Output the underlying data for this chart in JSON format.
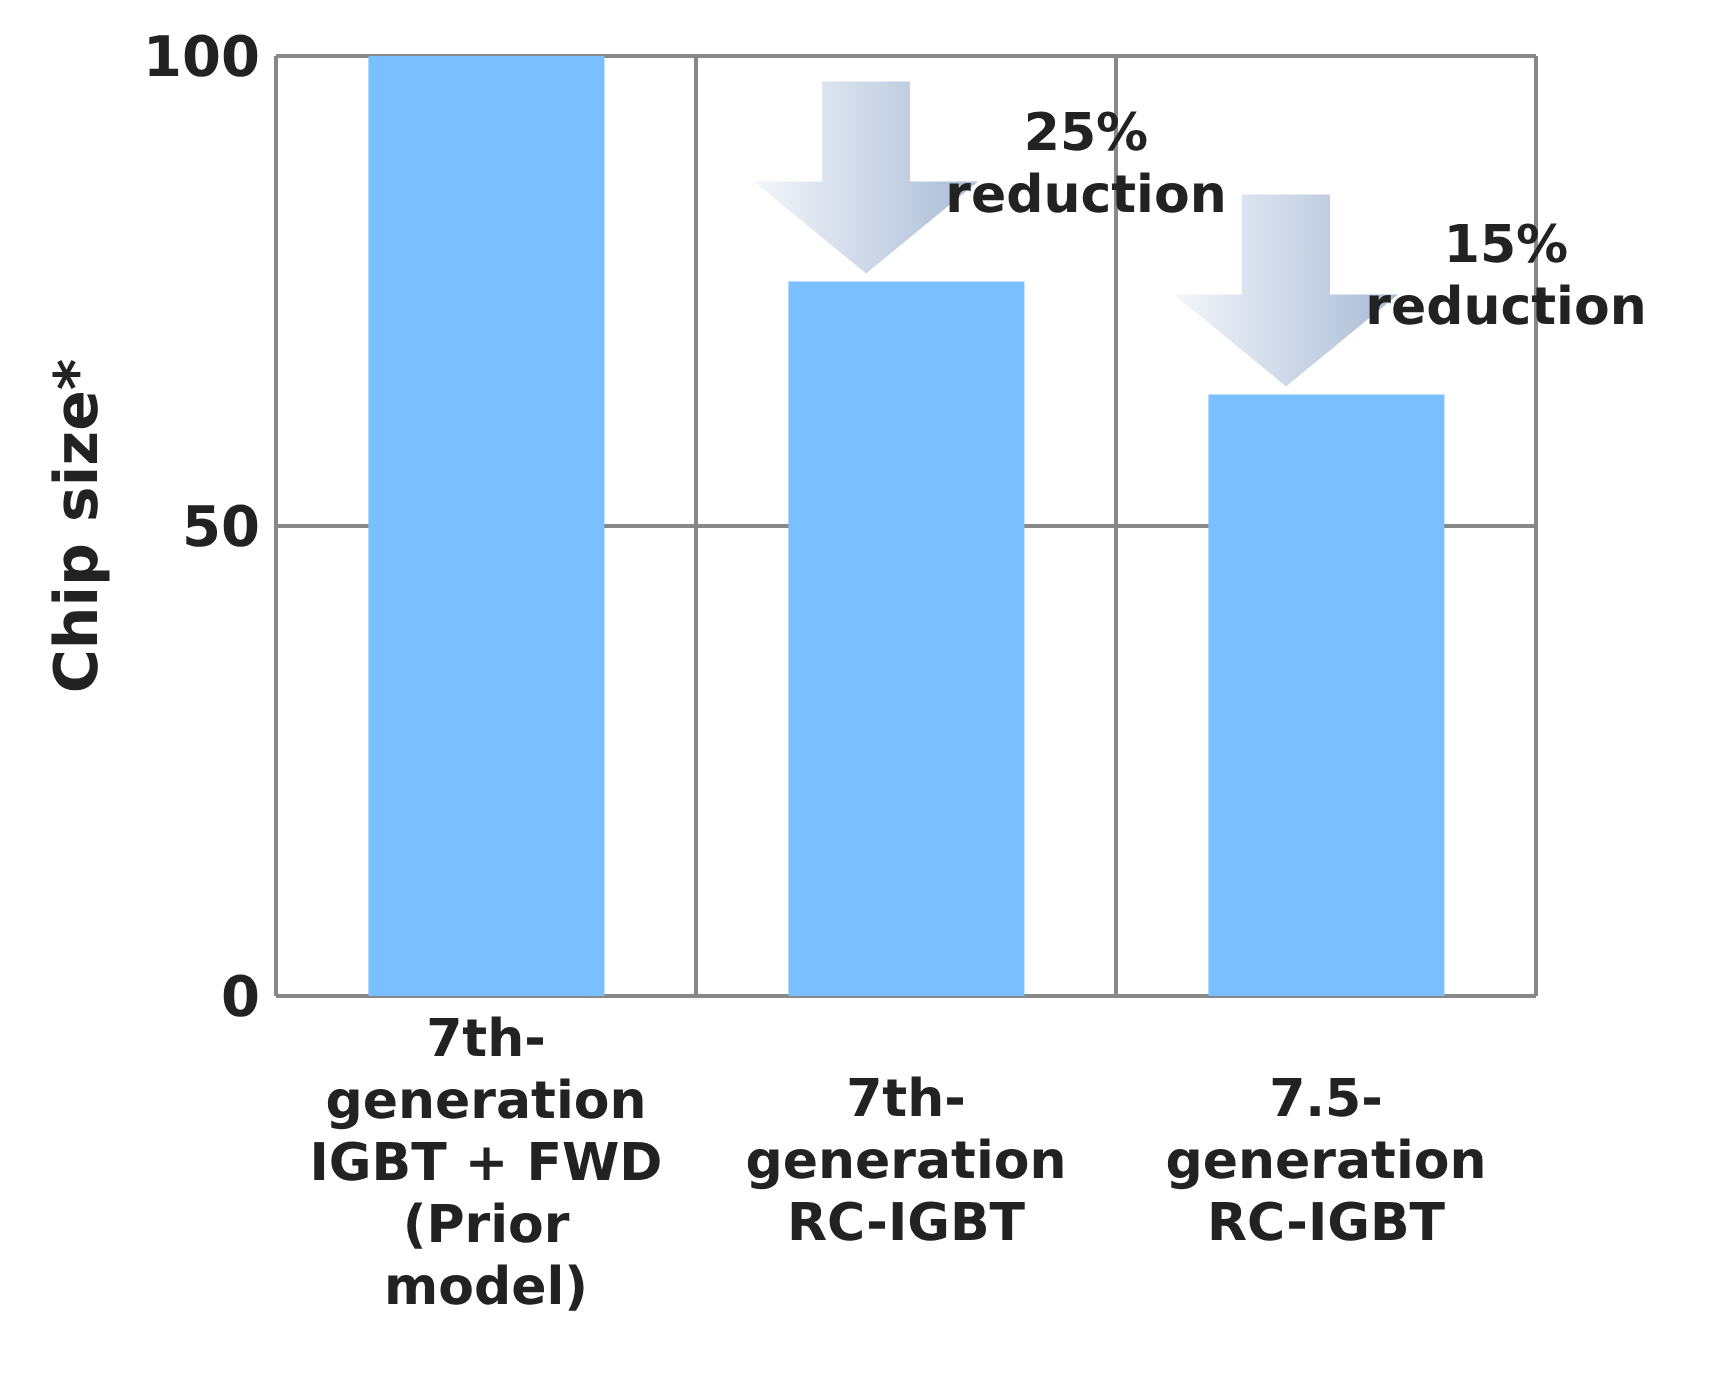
{
  "chart_data": {
    "type": "bar",
    "ylabel": "Chip size*",
    "categories": [
      "7th-generation IGBT + FWD (Prior model)",
      "7th-generation RC-IGBT",
      "7.5-generation RC-IGBT"
    ],
    "values": [
      100,
      76,
      64
    ],
    "color": "#7abfff",
    "ylim": [
      0,
      100
    ],
    "yticks": [
      0,
      50,
      100
    ],
    "grid": true,
    "annotations": [
      {
        "text": "25% reduction",
        "x": "7th-generation RC-IGBT",
        "y": 76
      },
      {
        "text": "15% reduction",
        "x": "7.5-generation RC-IGBT",
        "y": 64
      }
    ]
  }
}
